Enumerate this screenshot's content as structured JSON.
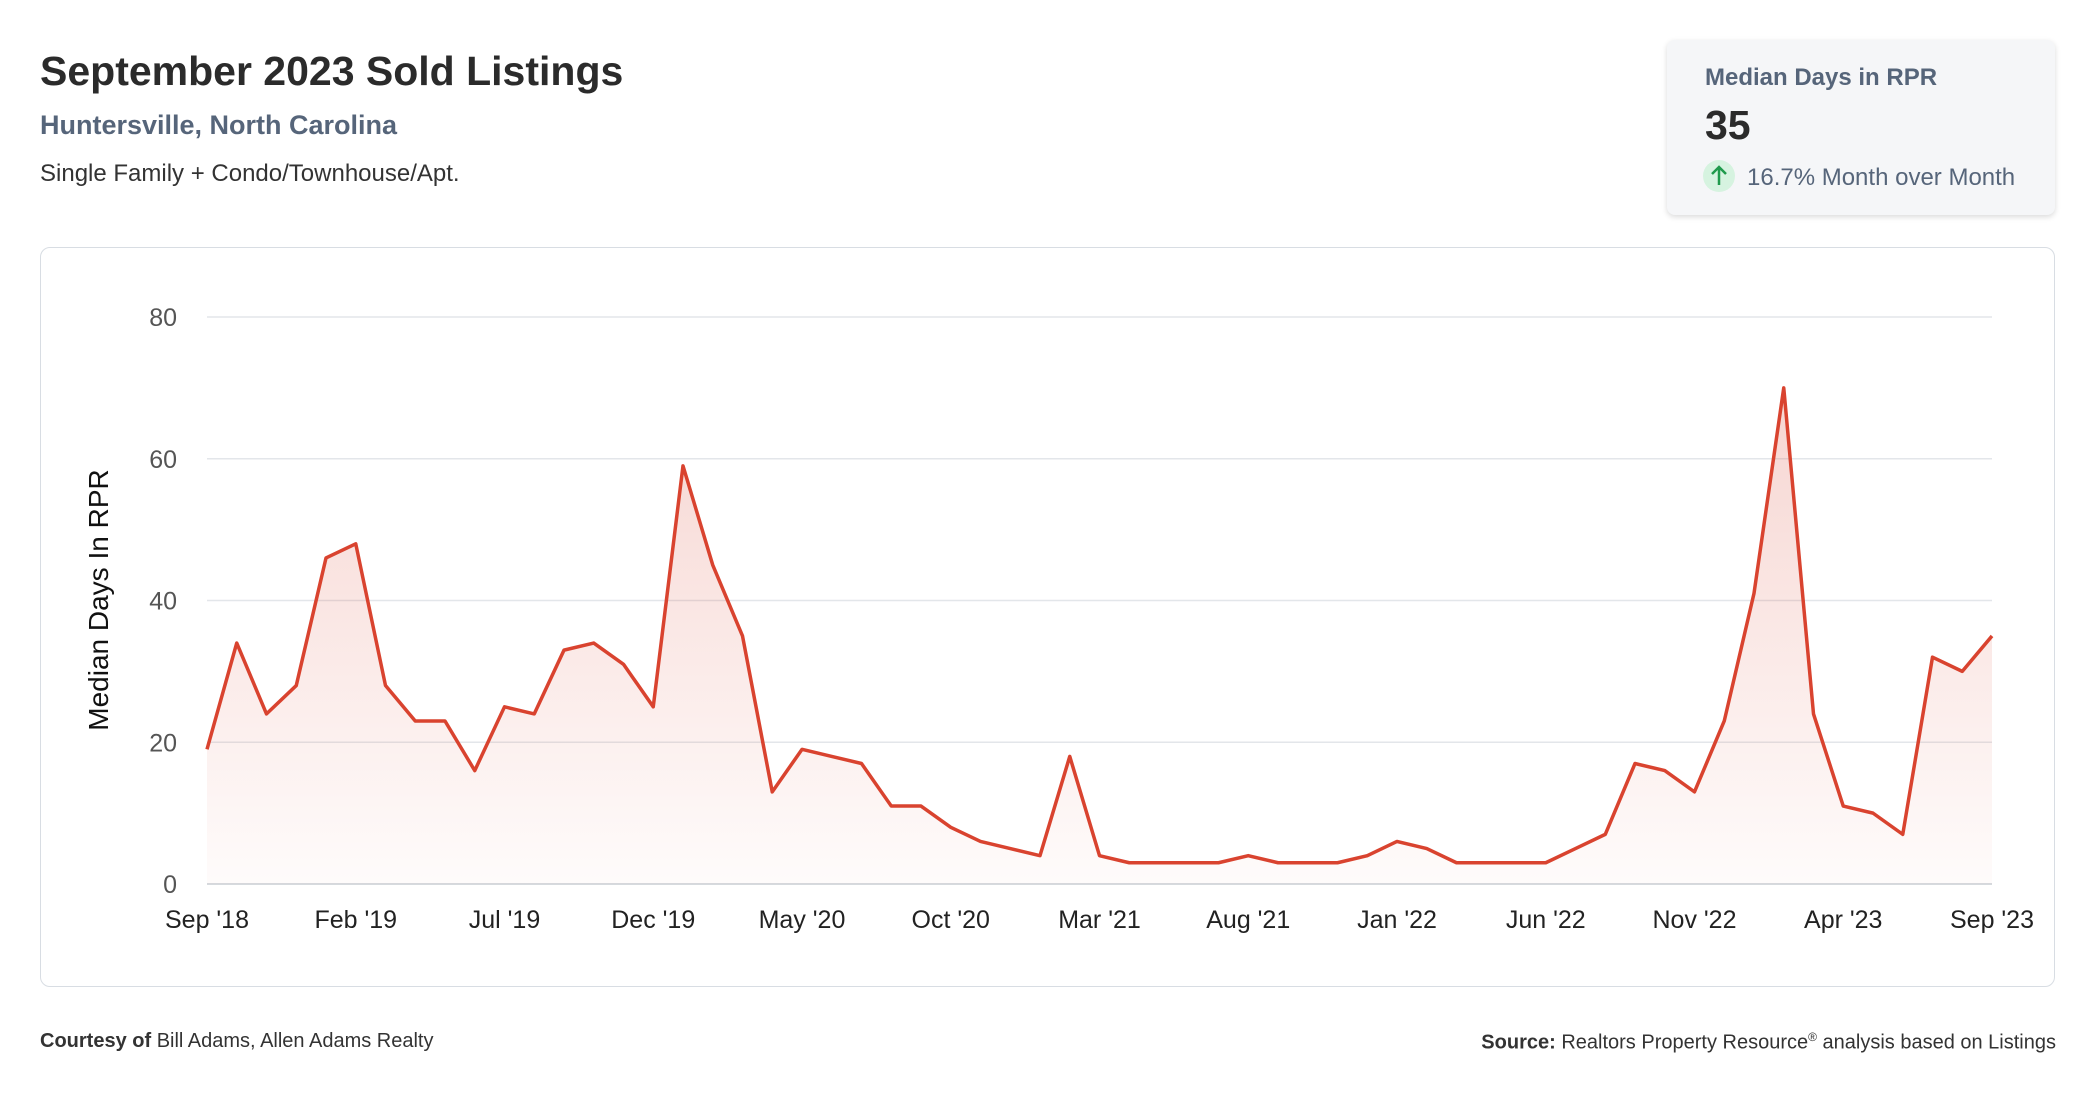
{
  "header": {
    "title": "September 2023 Sold Listings",
    "location": "Huntersville, North Carolina",
    "property_types": "Single Family + Condo/Townhouse/Apt."
  },
  "stat_card": {
    "label": "Median Days in RPR",
    "value": "35",
    "change": "16.7% Month over Month"
  },
  "chart_data": {
    "type": "line",
    "y_label": "Median Days In RPR",
    "categories": [
      "Sep '18",
      null,
      null,
      null,
      null,
      "Feb '19",
      null,
      null,
      null,
      null,
      "Jul '19",
      null,
      null,
      null,
      null,
      "Dec '19",
      null,
      null,
      null,
      null,
      "May '20",
      null,
      null,
      null,
      null,
      "Oct '20",
      null,
      null,
      null,
      null,
      "Mar '21",
      null,
      null,
      null,
      null,
      "Aug '21",
      null,
      null,
      null,
      null,
      "Jan '22",
      null,
      null,
      null,
      null,
      "Jun '22",
      null,
      null,
      null,
      null,
      "Nov '22",
      null,
      null,
      null,
      null,
      "Apr '23",
      null,
      null,
      null,
      null,
      "Sep '23"
    ],
    "series": [
      {
        "name": "Median Days In RPR",
        "color": "#d9432f",
        "values": [
          19,
          34,
          24,
          28,
          46,
          48,
          28,
          23,
          23,
          16,
          25,
          24,
          33,
          34,
          31,
          25,
          59,
          45,
          35,
          13,
          19,
          18,
          17,
          11,
          11,
          8,
          6,
          5,
          4,
          18,
          4,
          3,
          3,
          3,
          3,
          4,
          3,
          3,
          3,
          4,
          6,
          5,
          3,
          3,
          3,
          3,
          5,
          7,
          17,
          16,
          13,
          23,
          41,
          70,
          24,
          11,
          10,
          7,
          32,
          30,
          35
        ]
      }
    ],
    "ylim": [
      0,
      80
    ],
    "yticks": [
      0,
      20,
      40,
      60,
      80
    ],
    "grid": true
  },
  "footer": {
    "courtesy_label": "Courtesy of",
    "courtesy": "Bill Adams, Allen Adams Realty",
    "source_label": "Source:",
    "source": "Realtors Property Resource",
    "source_mark": "®",
    "source_rest": "analysis based on Listings"
  }
}
